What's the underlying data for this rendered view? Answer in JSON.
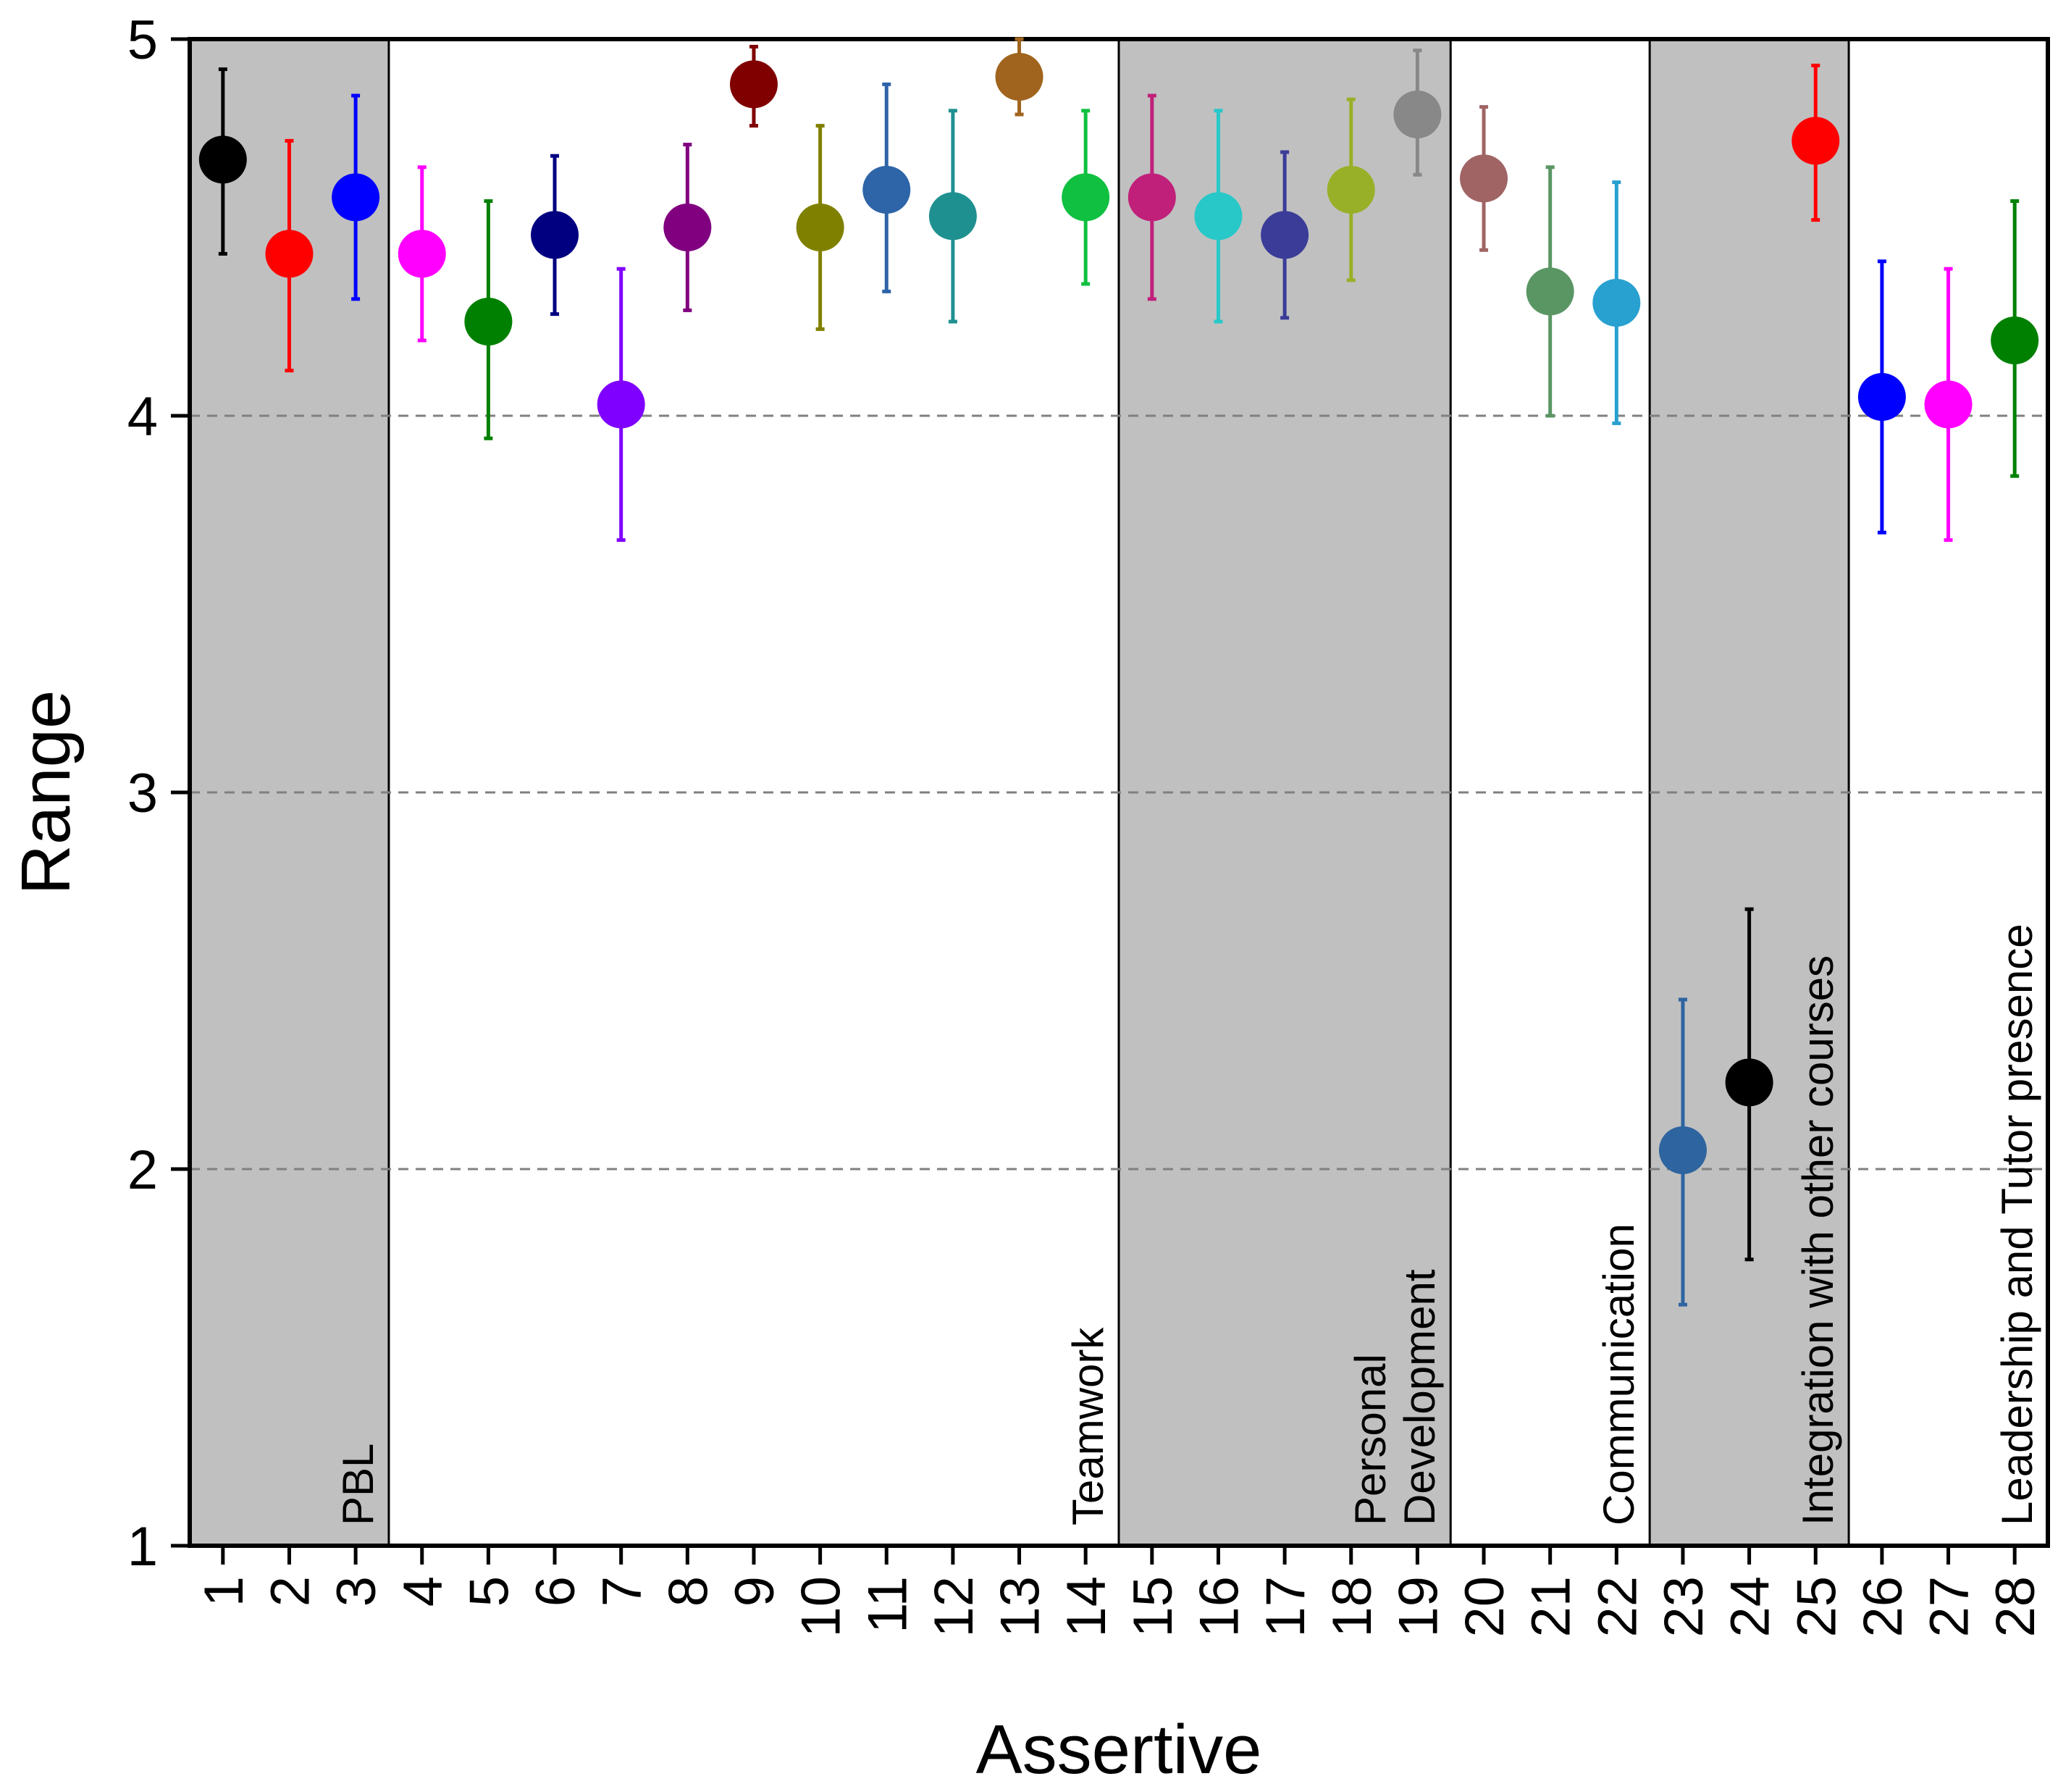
{
  "chart_data": {
    "type": "scatter",
    "title": "",
    "xlabel": "Assertive",
    "ylabel": "Range",
    "ylim": [
      1,
      5
    ],
    "xlim": [
      0.5,
      28.5
    ],
    "yticks": [
      1,
      2,
      3,
      4,
      5
    ],
    "gridlines_y": [
      2,
      3,
      4
    ],
    "grid_style": "dashed",
    "groups": [
      {
        "label": "PBL",
        "from": 1,
        "to": 3,
        "shaded": true
      },
      {
        "label": "Teamwork",
        "from": 4,
        "to": 14,
        "shaded": false
      },
      {
        "label": "Personal Development",
        "lines": [
          "Personal",
          "Development"
        ],
        "from": 15,
        "to": 19,
        "shaded": true
      },
      {
        "label": "Communication",
        "from": 20,
        "to": 22,
        "shaded": false
      },
      {
        "label": "Integration with other courses",
        "from": 23,
        "to": 25,
        "shaded": true
      },
      {
        "label": "Leadership and Tutor presence",
        "from": 26,
        "to": 28,
        "shaded": false
      }
    ],
    "points": [
      {
        "x": 1,
        "label": "1",
        "mean": 4.68,
        "low": 4.43,
        "high": 4.92,
        "color": "#000000"
      },
      {
        "x": 2,
        "label": "2",
        "mean": 4.43,
        "low": 4.12,
        "high": 4.73,
        "color": "#ff0000"
      },
      {
        "x": 3,
        "label": "3",
        "mean": 4.58,
        "low": 4.31,
        "high": 4.85,
        "color": "#0000ff"
      },
      {
        "x": 4,
        "label": "4",
        "mean": 4.43,
        "low": 4.2,
        "high": 4.66,
        "color": "#ff00ff"
      },
      {
        "x": 5,
        "label": "5",
        "mean": 4.25,
        "low": 3.94,
        "high": 4.57,
        "color": "#008000"
      },
      {
        "x": 6,
        "label": "6",
        "mean": 4.48,
        "low": 4.27,
        "high": 4.69,
        "color": "#000080"
      },
      {
        "x": 7,
        "label": "7",
        "mean": 4.03,
        "low": 3.67,
        "high": 4.39,
        "color": "#8000ff"
      },
      {
        "x": 8,
        "label": "8",
        "mean": 4.5,
        "low": 4.28,
        "high": 4.72,
        "color": "#800080"
      },
      {
        "x": 9,
        "label": "9",
        "mean": 4.88,
        "low": 4.77,
        "high": 4.98,
        "color": "#800000"
      },
      {
        "x": 10,
        "label": "10",
        "mean": 4.5,
        "low": 4.23,
        "high": 4.77,
        "color": "#808000"
      },
      {
        "x": 11,
        "label": "11",
        "mean": 4.6,
        "low": 4.33,
        "high": 4.88,
        "color": "#2e64a8"
      },
      {
        "x": 12,
        "label": "12",
        "mean": 4.53,
        "low": 4.25,
        "high": 4.81,
        "color": "#1f9090"
      },
      {
        "x": 13,
        "label": "13",
        "mean": 4.9,
        "low": 4.8,
        "high": 5.0,
        "color": "#a0641e"
      },
      {
        "x": 14,
        "label": "14",
        "mean": 4.58,
        "low": 4.35,
        "high": 4.81,
        "color": "#10c040"
      },
      {
        "x": 15,
        "label": "15",
        "mean": 4.58,
        "low": 4.31,
        "high": 4.85,
        "color": "#c0207a"
      },
      {
        "x": 16,
        "label": "16",
        "mean": 4.53,
        "low": 4.25,
        "high": 4.81,
        "color": "#28c8c8"
      },
      {
        "x": 17,
        "label": "17",
        "mean": 4.48,
        "low": 4.26,
        "high": 4.7,
        "color": "#3a3c98"
      },
      {
        "x": 18,
        "label": "18",
        "mean": 4.6,
        "low": 4.36,
        "high": 4.84,
        "color": "#98b028"
      },
      {
        "x": 19,
        "label": "19",
        "mean": 4.8,
        "low": 4.64,
        "high": 4.97,
        "color": "#888888"
      },
      {
        "x": 20,
        "label": "20",
        "mean": 4.63,
        "low": 4.44,
        "high": 4.82,
        "color": "#a06464"
      },
      {
        "x": 21,
        "label": "21",
        "mean": 4.33,
        "low": 4.0,
        "high": 4.66,
        "color": "#5a9664"
      },
      {
        "x": 22,
        "label": "22",
        "mean": 4.3,
        "low": 3.98,
        "high": 4.62,
        "color": "#28a0d0"
      },
      {
        "x": 23,
        "label": "23",
        "mean": 2.05,
        "low": 1.64,
        "high": 2.45,
        "color": "#2e64a0"
      },
      {
        "x": 24,
        "label": "24",
        "mean": 2.23,
        "low": 1.76,
        "high": 2.69,
        "color": "#000000"
      },
      {
        "x": 25,
        "label": "25",
        "mean": 4.73,
        "low": 4.52,
        "high": 4.93,
        "color": "#ff0000"
      },
      {
        "x": 26,
        "label": "26",
        "mean": 4.05,
        "low": 3.69,
        "high": 4.41,
        "color": "#0000ff"
      },
      {
        "x": 27,
        "label": "27",
        "mean": 4.03,
        "low": 3.67,
        "high": 4.39,
        "color": "#ff00ff"
      },
      {
        "x": 28,
        "label": "28",
        "mean": 4.2,
        "low": 3.84,
        "high": 4.57,
        "color": "#008000"
      }
    ]
  }
}
